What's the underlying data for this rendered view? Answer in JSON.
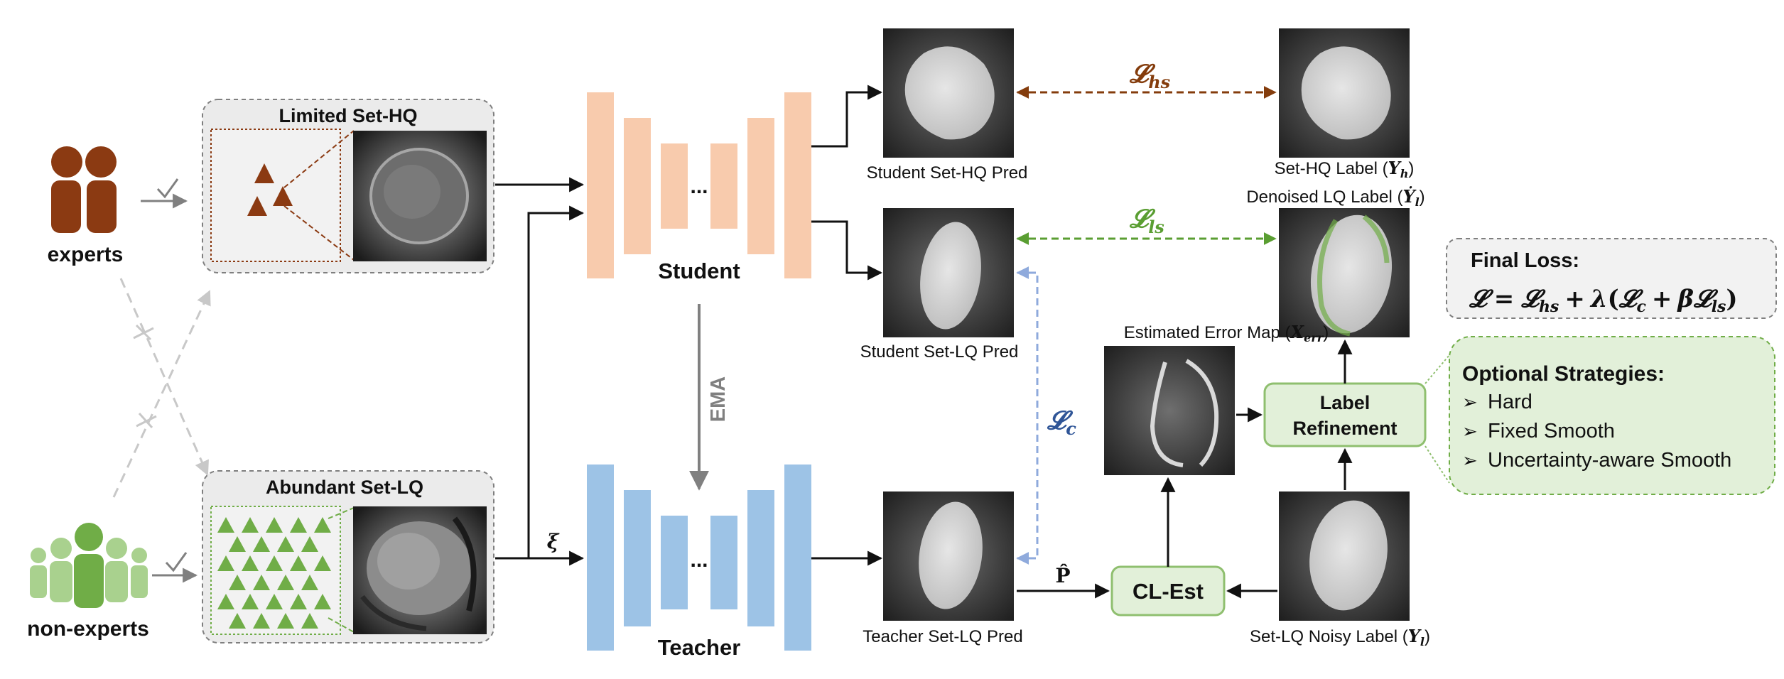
{
  "groups": {
    "experts": "experts",
    "non_experts": "non-experts"
  },
  "sets": {
    "hq_title": "Limited Set-HQ",
    "lq_title": "Abundant Set-LQ"
  },
  "networks": {
    "student": "Student",
    "teacher": "Teacher",
    "ellipsis": "...",
    "ema": "EMA",
    "noise": "ξ"
  },
  "images": {
    "student_hq_pred": "Student Set-HQ Pred",
    "student_lq_pred": "Student Set-LQ Pred",
    "teacher_lq_pred": "Teacher Set-LQ Pred",
    "hq_label": "Set-HQ Label (",
    "hq_label_sym": "Y",
    "hq_label_sub": "h",
    "denoised_label": "Denoised LQ Label (",
    "denoised_label_sym": "Ẏ",
    "denoised_label_sub": "l",
    "error_map": "Estimated Error Map (",
    "error_map_sym": "X",
    "error_map_sub": "err",
    "noisy_label": "Set-LQ Noisy Label (",
    "noisy_label_sym": "Y",
    "noisy_label_sub": "l",
    "close_paren": ")"
  },
  "losses": {
    "script_L": "𝓛",
    "hs": "hs",
    "ls": "ls",
    "c": "c"
  },
  "modules": {
    "cl_est": "CL-Est",
    "label_refinement_1": "Label",
    "label_refinement_2": "Refinement",
    "p_hat": "P̂"
  },
  "final_loss": {
    "title": "Final Loss:",
    "L": "𝓛",
    "eq": "=",
    "plus": "+",
    "lambda": "λ",
    "open": "(",
    "beta": "β",
    "close": ")",
    "hs": "hs",
    "c": "c",
    "ls": "ls"
  },
  "strategies": {
    "title": "Optional Strategies:",
    "bullet": "➢",
    "items": [
      "Hard",
      "Fixed Smooth",
      "Uncertainty-aware Smooth"
    ]
  },
  "colors": {
    "expert": "#8b3a12",
    "nonexpert": "#70ad47",
    "nonexpert_light": "#a9d18e",
    "student": "#f8cbad",
    "teacher": "#9dc3e6",
    "loss_hs": "#843c0c",
    "loss_ls": "#5a9e32",
    "loss_c": "#2f5597",
    "green_box": "#e2f0d9",
    "green_border": "#8fbf6f"
  }
}
